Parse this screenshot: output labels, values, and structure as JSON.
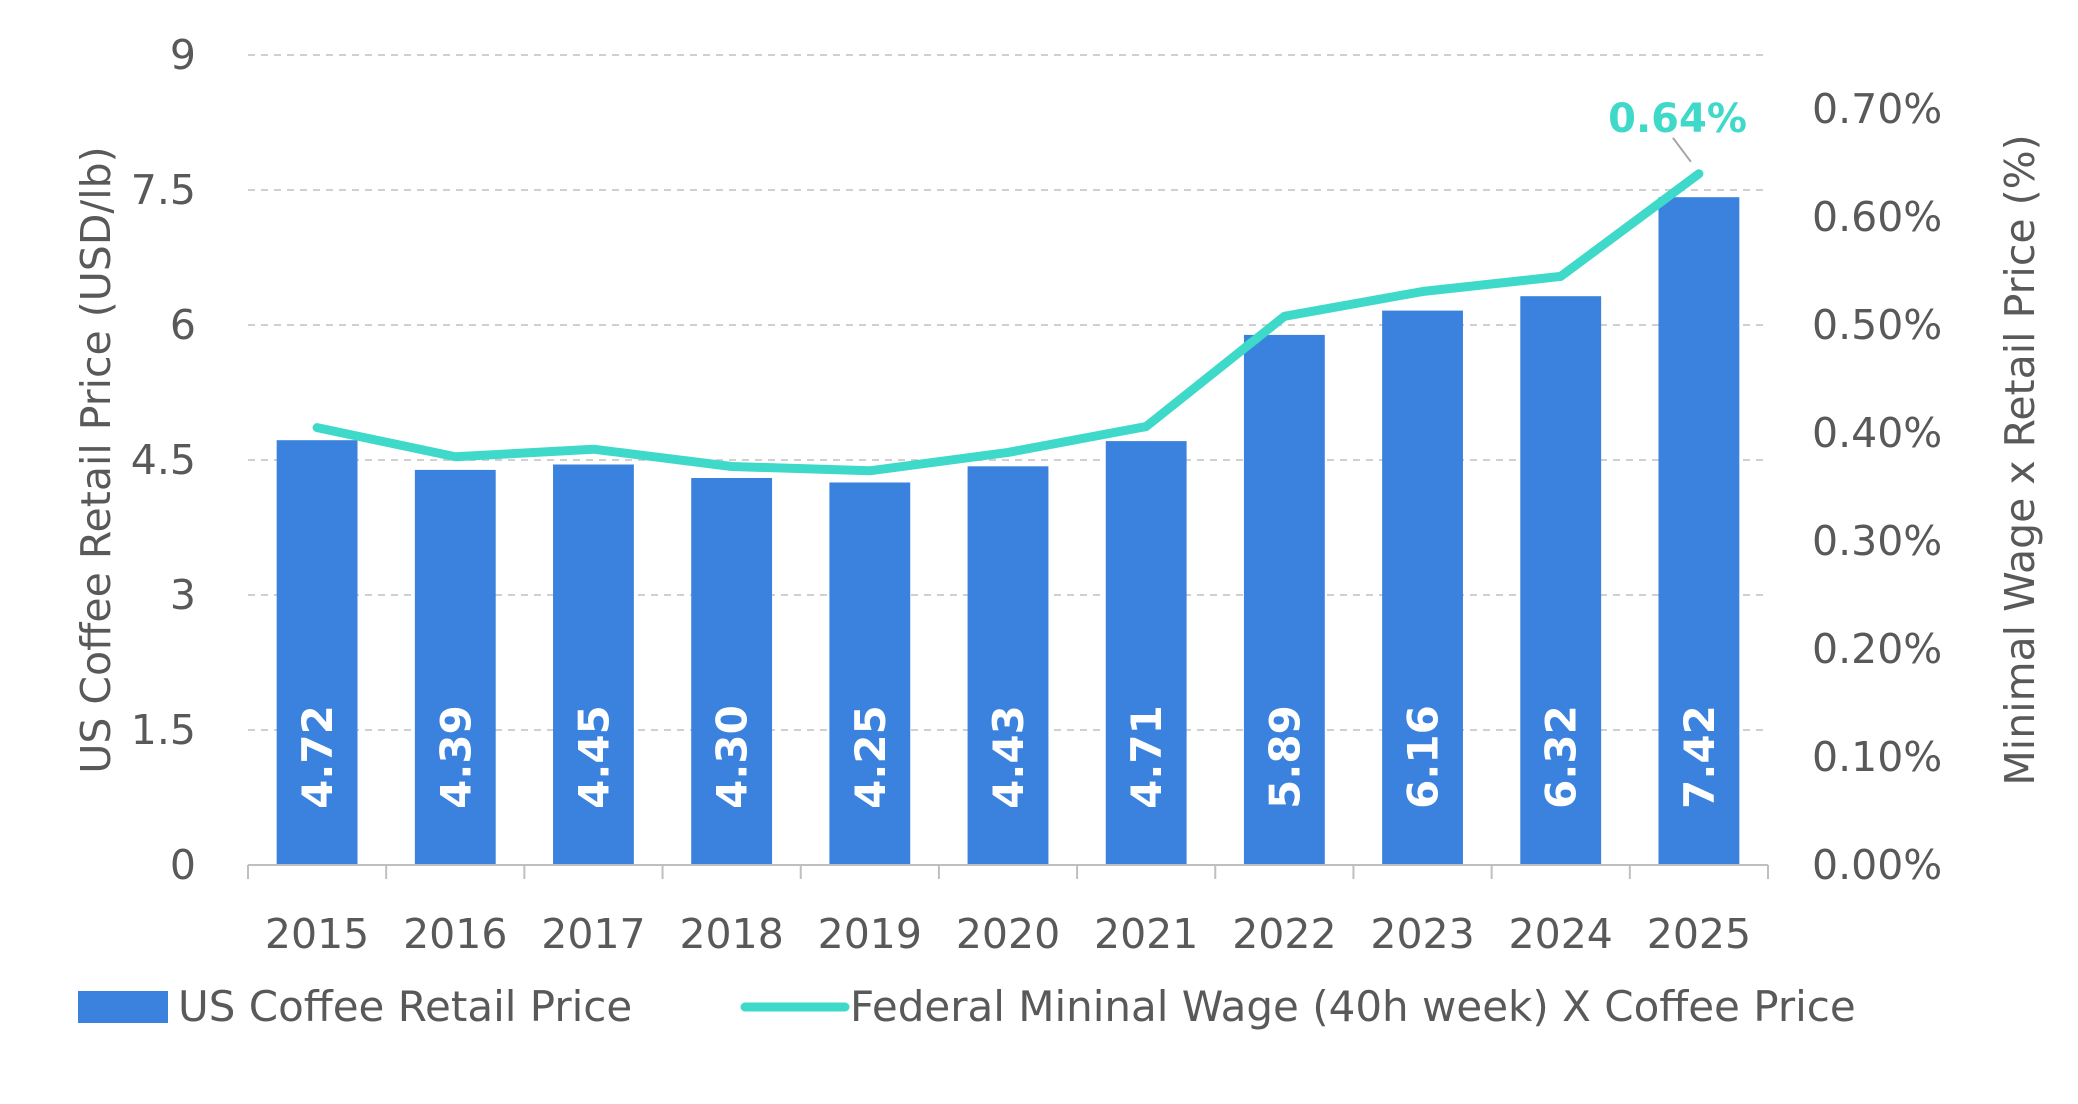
{
  "chart_data": {
    "type": "bar",
    "categories": [
      "2015",
      "2016",
      "2017",
      "2018",
      "2019",
      "2020",
      "2021",
      "2022",
      "2023",
      "2024",
      "2025"
    ],
    "series": [
      {
        "name": "US Coffee Retail Price",
        "type": "bar",
        "axis": "left",
        "color": "#3A82DE",
        "values": [
          4.72,
          4.39,
          4.45,
          4.3,
          4.25,
          4.43,
          4.71,
          5.89,
          6.16,
          6.32,
          7.42
        ],
        "labels": [
          "4.72",
          "4.39",
          "4.45",
          "4.30",
          "4.25",
          "4.43",
          "4.71",
          "5.89",
          "6.16",
          "6.32",
          "7.42"
        ]
      },
      {
        "name": "Federal Mininal Wage (40h week) X Coffee Price",
        "type": "line",
        "axis": "right",
        "color": "#3ED9C9",
        "values": [
          0.405,
          0.378,
          0.385,
          0.369,
          0.365,
          0.382,
          0.406,
          0.508,
          0.531,
          0.545,
          0.64
        ]
      }
    ],
    "y_left": {
      "label": "US Coffee Retail Price (USD/lb)",
      "min": 0,
      "max": 9,
      "ticks": [
        0,
        1.5,
        3,
        4.5,
        6,
        7.5,
        9
      ],
      "tick_labels": [
        "0",
        "1.5",
        "3",
        "4.5",
        "6",
        "7.5",
        "9"
      ]
    },
    "y_right": {
      "label": "Minimal Wage x Retail Price (%)",
      "min": 0,
      "max": 0.75,
      "ticks": [
        0,
        0.1,
        0.2,
        0.3,
        0.4,
        0.5,
        0.6,
        0.7
      ],
      "tick_labels": [
        "0.00%",
        "0.10%",
        "0.20%",
        "0.30%",
        "0.40%",
        "0.50%",
        "0.60%",
        "0.70%"
      ]
    },
    "annotation": {
      "text": "0.64%",
      "series": 1,
      "index": 10,
      "color": "#3ED9C9"
    },
    "grid": true,
    "legend": {
      "position": "bottom",
      "entries": [
        "US Coffee Retail Price",
        "Federal Mininal Wage (40h week) X Coffee Price"
      ]
    }
  }
}
